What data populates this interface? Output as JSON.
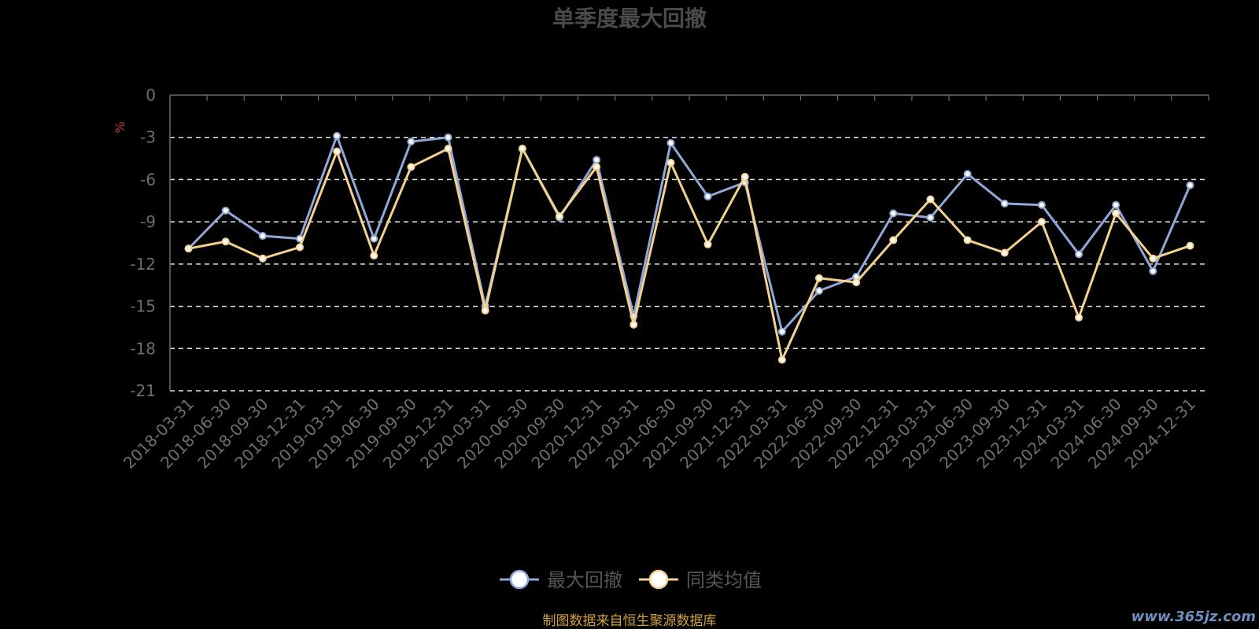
{
  "chart_data": {
    "type": "line",
    "title": "单季度最大回撤",
    "ylabel": "%",
    "ylim": [
      -21,
      0
    ],
    "yticks": [
      0,
      -3,
      -6,
      -9,
      -12,
      -15,
      -18,
      -21
    ],
    "grid": "horizontal-dashed",
    "legend_position": "bottom-center",
    "x": [
      "2018-03-31",
      "2018-06-30",
      "2018-09-30",
      "2018-12-31",
      "2019-03-31",
      "2019-06-30",
      "2019-09-30",
      "2019-12-31",
      "2020-03-31",
      "2020-06-30",
      "2020-09-30",
      "2020-12-31",
      "2021-03-31",
      "2021-06-30",
      "2021-09-30",
      "2021-12-31",
      "2022-03-31",
      "2022-06-30",
      "2022-09-30",
      "2022-12-31",
      "2023-03-31",
      "2023-06-30",
      "2023-09-30",
      "2023-12-31",
      "2024-03-31",
      "2024-06-30",
      "2024-09-30",
      "2024-12-31"
    ],
    "series": [
      {
        "name": "最大回撤",
        "color": "#8fa8d8",
        "values": [
          -10.9,
          -8.2,
          -10.0,
          -10.2,
          -2.9,
          -10.2,
          -3.3,
          -3.0,
          -15.0,
          -3.8,
          -8.7,
          -4.6,
          -15.7,
          -3.4,
          -7.2,
          -6.2,
          -16.8,
          -13.9,
          -12.9,
          -8.4,
          -8.7,
          -5.6,
          -7.7,
          -7.8,
          -11.3,
          -7.8,
          -12.5,
          -6.4
        ]
      },
      {
        "name": "同类均值",
        "color": "#f5d18f",
        "values": [
          -10.9,
          -10.4,
          -11.6,
          -10.8,
          -4.0,
          -11.4,
          -5.1,
          -3.8,
          -15.3,
          -3.8,
          -8.6,
          -5.1,
          -16.3,
          -4.8,
          -10.6,
          -5.8,
          -18.8,
          -13.0,
          -13.3,
          -10.3,
          -7.4,
          -10.3,
          -11.2,
          -9.0,
          -15.8,
          -8.4,
          -11.6,
          -10.7
        ]
      }
    ]
  },
  "footer": {
    "source": "制图数据来自恒生聚源数据库",
    "watermark": "www.365jz.com"
  }
}
